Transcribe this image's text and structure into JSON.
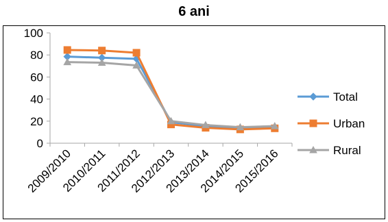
{
  "chart_data": {
    "type": "line",
    "title": "6 ani",
    "categories": [
      "2009/2010",
      "2010/2011",
      "2011/2012",
      "2012/2013",
      "2013/2014",
      "2014/2015",
      "2015/2016"
    ],
    "ylim": [
      0,
      100
    ],
    "yticks": [
      0,
      20,
      40,
      60,
      80,
      100
    ],
    "grid": false,
    "legend": "right",
    "series": [
      {
        "name": "Total",
        "color": "#5B9BD5",
        "marker": "diamond",
        "values": [
          78.5,
          77.5,
          76.5,
          19,
          15.5,
          13.5,
          14.5
        ]
      },
      {
        "name": "Urban",
        "color": "#ED7D31",
        "marker": "square",
        "values": [
          84.5,
          84,
          82,
          17,
          14,
          12.5,
          13.5
        ]
      },
      {
        "name": "Rural",
        "color": "#A5A5A5",
        "marker": "triangle",
        "values": [
          73.5,
          73,
          70.5,
          20,
          16.5,
          14.5,
          15.5
        ]
      }
    ]
  }
}
